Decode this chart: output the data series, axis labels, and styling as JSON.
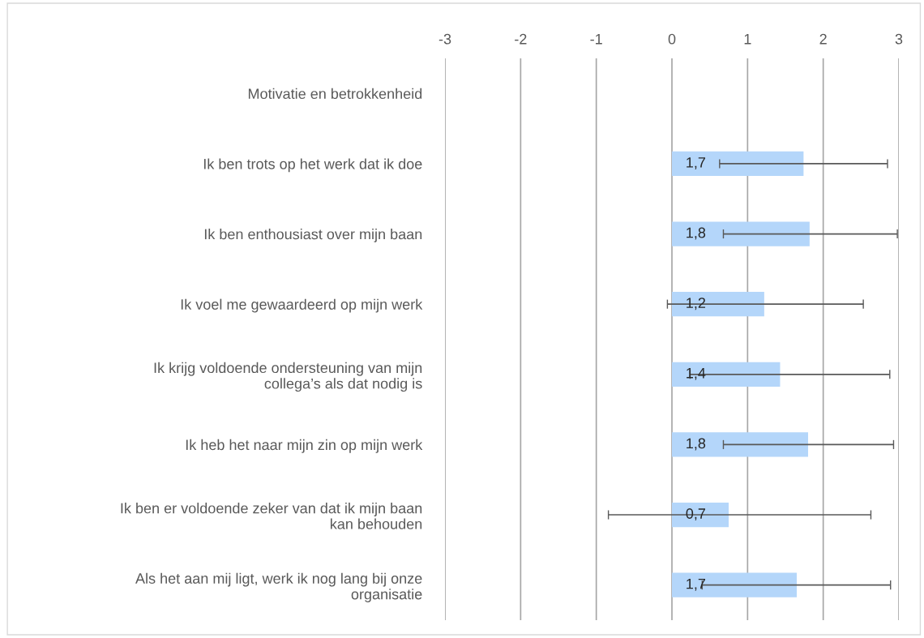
{
  "chart_data": {
    "type": "bar",
    "orientation": "horizontal",
    "categories": [
      "Motivatie en betrokkenheid",
      "Ik ben trots op het werk dat ik doe",
      "Ik ben enthousiast over mijn baan",
      "Ik voel me gewaardeerd op mijn werk",
      "Ik krijg voldoende ondersteuning van mijn collega’s als dat nodig is",
      "Ik heb het naar mijn zin op mijn werk",
      "Ik ben er voldoende zeker van dat ik mijn baan kan behouden",
      "Als het aan mij ligt, werk ik nog lang bij onze organisatie"
    ],
    "values": [
      null,
      1.74,
      1.82,
      1.22,
      1.43,
      1.8,
      0.75,
      1.65
    ],
    "value_labels": [
      null,
      "1,7",
      "1,8",
      "1,2",
      "1,4",
      "1,8",
      "0,7",
      "1,7"
    ],
    "errors": [
      null,
      [
        0.63,
        2.85
      ],
      [
        0.68,
        2.98
      ],
      [
        -0.06,
        2.53
      ],
      [
        0.24,
        2.88
      ],
      [
        0.68,
        2.93
      ],
      [
        -0.84,
        2.63
      ],
      [
        0.4,
        2.89
      ]
    ],
    "color": "#b4d6fa",
    "xlim": [
      -3,
      3
    ],
    "xticks": [
      -3,
      -2,
      -1,
      0,
      1,
      2,
      3
    ],
    "grid": "x"
  }
}
